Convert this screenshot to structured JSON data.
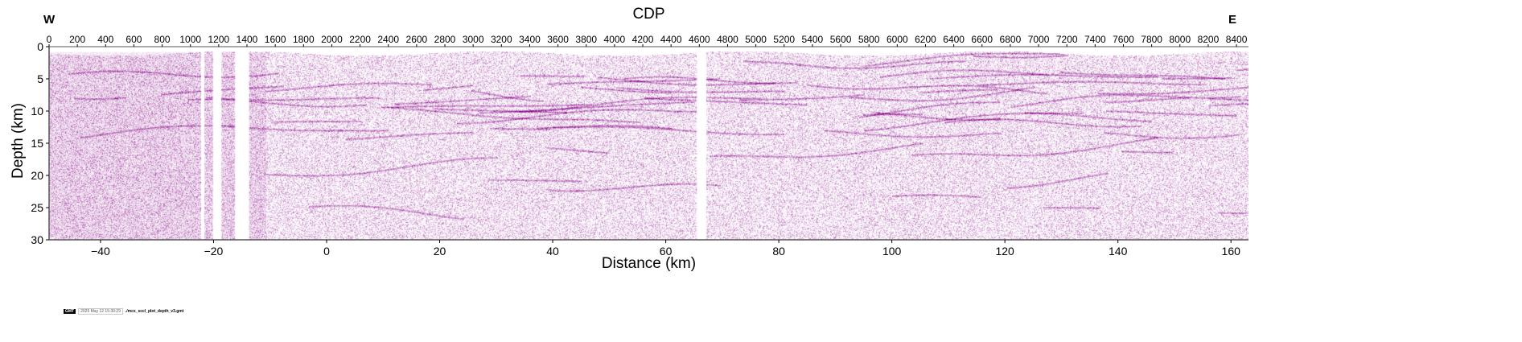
{
  "chart_data": {
    "type": "heatmap",
    "title": "CDP",
    "xlabel": "Distance (km)",
    "ylabel": "Depth (km)",
    "top_axis_label": "CDP",
    "left_end_label": "W",
    "right_end_label": "E",
    "xlim": [
      -49.1,
      163.1
    ],
    "ylim": [
      30,
      0
    ],
    "cdp_range": [
      0,
      8485
    ],
    "x_ticks": [
      -40,
      -20,
      0,
      20,
      40,
      60,
      80,
      100,
      120,
      140,
      160
    ],
    "y_ticks": [
      0,
      5,
      10,
      15,
      20,
      25,
      30
    ],
    "cdp_ticks": [
      0,
      200,
      400,
      600,
      800,
      1000,
      1200,
      1400,
      1600,
      1800,
      2000,
      2200,
      2400,
      2600,
      2800,
      3000,
      3200,
      3400,
      3600,
      3800,
      4000,
      4200,
      4400,
      4600,
      4800,
      5000,
      5200,
      5400,
      5600,
      5800,
      6000,
      6200,
      6400,
      6600,
      6800,
      7000,
      7200,
      7400,
      7600,
      7800,
      8000,
      8200,
      8400
    ],
    "data_gaps_km": [
      [
        -22.2,
        -21.6
      ],
      [
        -20.1,
        -18.6
      ],
      [
        -16.2,
        -13.7
      ],
      [
        65.5,
        67.2
      ]
    ],
    "colormap": [
      "#ffffff",
      "#8b008b"
    ]
  },
  "stamp": {
    "logo": "GMT",
    "timestamp": "2025 May 12 15:30:29",
    "file": "./mcs_sccl_plot_depth_v3.gmt"
  },
  "colors": {
    "amplitude": "#8b0a8b"
  }
}
